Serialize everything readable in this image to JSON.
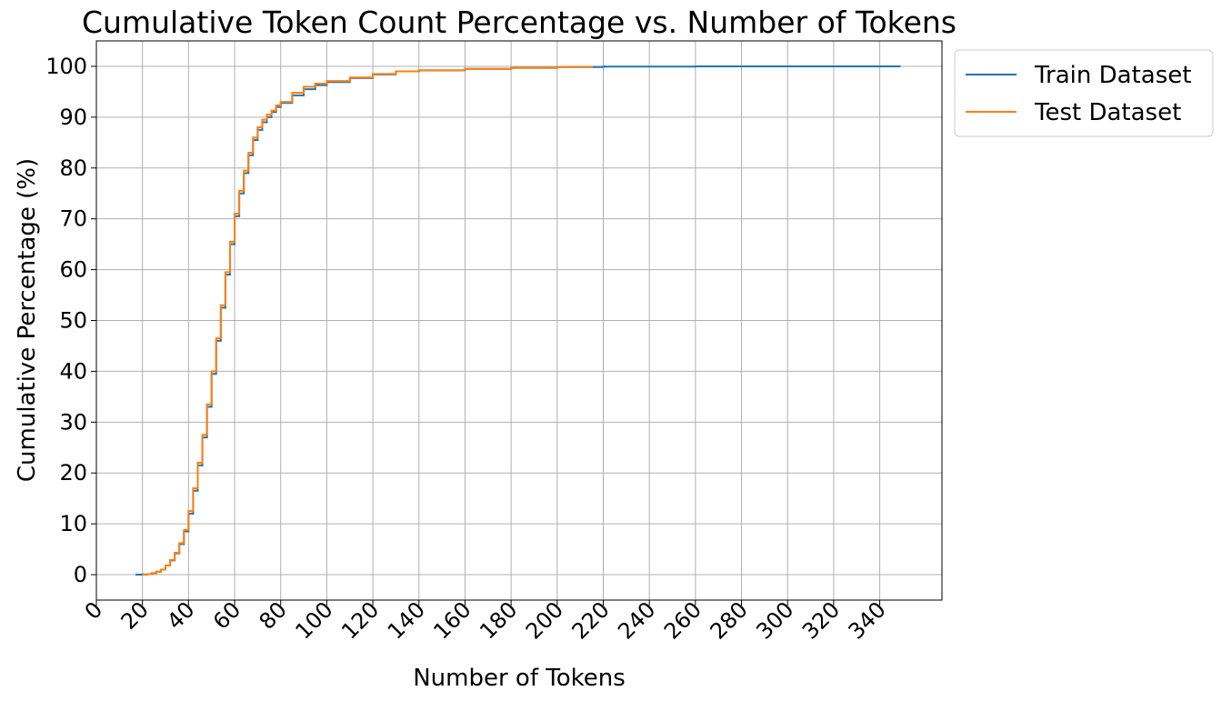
{
  "chart_data": {
    "type": "line",
    "title": "Cumulative Token Count Percentage vs. Number of Tokens",
    "xlabel": "Number of Tokens",
    "ylabel": "Cumulative Percentage (%)",
    "xlim": [
      0,
      367
    ],
    "ylim": [
      -5,
      105
    ],
    "xticks": [
      0,
      20,
      40,
      60,
      80,
      100,
      120,
      140,
      160,
      180,
      200,
      220,
      240,
      260,
      280,
      300,
      320,
      340
    ],
    "yticks": [
      0,
      10,
      20,
      30,
      40,
      50,
      60,
      70,
      80,
      90,
      100
    ],
    "grid": true,
    "legend_position": "outside top-right",
    "series": [
      {
        "name": "Train Dataset",
        "color": "#1f77b4",
        "x": [
          17,
          20,
          22,
          24,
          26,
          28,
          30,
          32,
          34,
          36,
          38,
          40,
          42,
          44,
          46,
          48,
          50,
          52,
          54,
          56,
          58,
          60,
          62,
          64,
          66,
          68,
          70,
          72,
          74,
          76,
          78,
          80,
          85,
          90,
          95,
          100,
          110,
          120,
          130,
          140,
          160,
          180,
          200,
          220,
          260,
          300,
          349
        ],
        "y": [
          0,
          0.05,
          0.1,
          0.3,
          0.6,
          1.0,
          1.8,
          2.8,
          4.2,
          6.0,
          8.5,
          12.0,
          16.5,
          21.5,
          27.0,
          33.0,
          39.5,
          46.0,
          52.5,
          59.0,
          65.0,
          70.5,
          75.0,
          79.0,
          82.5,
          85.5,
          87.5,
          89.0,
          90.0,
          91.0,
          92.0,
          92.8,
          94.3,
          95.5,
          96.3,
          96.9,
          97.7,
          98.4,
          99.0,
          99.2,
          99.5,
          99.7,
          99.85,
          99.95,
          100,
          100,
          100
        ]
      },
      {
        "name": "Test Dataset",
        "color": "#ff7f0e",
        "x": [
          20,
          22,
          24,
          26,
          28,
          30,
          32,
          34,
          36,
          38,
          40,
          42,
          44,
          46,
          48,
          50,
          52,
          54,
          56,
          58,
          60,
          62,
          64,
          66,
          68,
          70,
          72,
          74,
          76,
          78,
          80,
          85,
          90,
          95,
          100,
          110,
          120,
          130,
          140,
          160,
          180,
          200,
          215
        ],
        "y": [
          0,
          0.1,
          0.3,
          0.6,
          1.0,
          1.8,
          2.9,
          4.3,
          6.2,
          8.8,
          12.5,
          17.0,
          22.0,
          27.5,
          33.5,
          40.0,
          46.5,
          53.0,
          59.5,
          65.5,
          71.0,
          75.5,
          79.5,
          83.0,
          86.0,
          88.0,
          89.5,
          90.5,
          91.3,
          92.3,
          93.0,
          94.8,
          96.0,
          96.6,
          97.1,
          97.8,
          98.5,
          99.0,
          99.2,
          99.5,
          99.7,
          99.9,
          100
        ]
      }
    ]
  }
}
